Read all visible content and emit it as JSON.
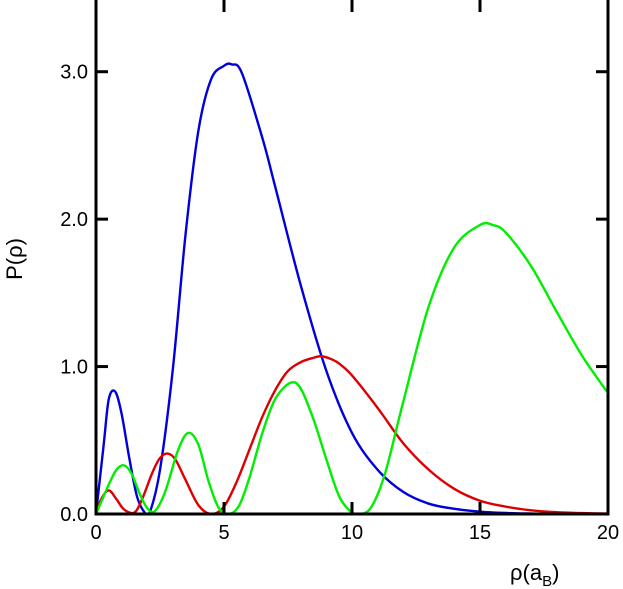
{
  "chart_data": {
    "type": "line",
    "title": "",
    "xlabel": "ρ(a",
    "xlabel_sub": "B",
    "xlabel_close": ")",
    "ylabel": "P(ρ)",
    "xlim": [
      0,
      20
    ],
    "ylim": [
      0,
      3.5
    ],
    "grid": false,
    "legend": "none",
    "x_ticks": [
      0,
      5,
      10,
      15,
      20
    ],
    "x_tick_labels": [
      "0",
      "5",
      "10",
      "15",
      "20"
    ],
    "y_ticks": [
      0,
      1,
      2,
      3
    ],
    "y_tick_labels": [
      "0.0",
      "1.0",
      "2.0",
      "3.0"
    ],
    "series": [
      {
        "color": "#0000dd",
        "x": [
          0,
          0.3,
          0.5,
          0.75,
          1.0,
          1.3,
          1.6,
          1.9,
          2.1,
          2.5,
          3.0,
          3.5,
          4.0,
          4.5,
          5.0,
          5.3,
          5.7,
          6.5,
          7.0,
          8.0,
          9.0,
          10.0,
          11.0,
          12.0,
          13.0,
          14.0,
          15.0,
          16.0,
          17.0,
          18.0,
          20.0
        ],
        "y": [
          0,
          0.47,
          0.78,
          0.83,
          0.68,
          0.38,
          0.12,
          0.01,
          0.01,
          0.3,
          0.98,
          1.9,
          2.6,
          2.95,
          3.04,
          3.05,
          2.99,
          2.55,
          2.22,
          1.55,
          0.97,
          0.55,
          0.3,
          0.15,
          0.07,
          0.035,
          0.016,
          0.007,
          0.003,
          0.001,
          0.0
        ]
      },
      {
        "color": "#dd0000",
        "x": [
          0,
          0.2,
          0.5,
          0.8,
          1.1,
          1.5,
          1.8,
          2.2,
          2.5,
          2.8,
          3.1,
          3.5,
          4.0,
          4.5,
          5.0,
          5.5,
          6.0,
          6.5,
          7.0,
          7.5,
          8.0,
          8.5,
          8.8,
          9.2,
          9.5,
          10.0,
          11.0,
          12.0,
          13.0,
          14.0,
          15.0,
          16.0,
          17.0,
          18.0,
          19.0,
          20.0
        ],
        "y": [
          0,
          0.1,
          0.16,
          0.1,
          0.03,
          0.01,
          0.1,
          0.28,
          0.38,
          0.41,
          0.37,
          0.23,
          0.06,
          0.0,
          0.05,
          0.22,
          0.44,
          0.66,
          0.84,
          0.97,
          1.03,
          1.06,
          1.07,
          1.05,
          1.02,
          0.94,
          0.72,
          0.48,
          0.3,
          0.17,
          0.09,
          0.05,
          0.025,
          0.012,
          0.006,
          0.003
        ]
      },
      {
        "color": "#00ee00",
        "x": [
          0,
          0.5,
          0.8,
          1.1,
          1.4,
          1.7,
          2.0,
          2.3,
          2.7,
          3.2,
          3.6,
          4.0,
          4.4,
          4.8,
          5.2,
          5.6,
          6.0,
          6.5,
          7.0,
          7.6,
          8.0,
          8.5,
          9.0,
          9.5,
          10.0,
          10.4,
          10.8,
          11.3,
          12.0,
          13.0,
          14.0,
          15.0,
          15.5,
          16.0,
          17.0,
          18.0,
          19.0,
          20.0
        ],
        "y": [
          0,
          0.2,
          0.3,
          0.33,
          0.27,
          0.14,
          0.04,
          0.02,
          0.15,
          0.43,
          0.55,
          0.47,
          0.22,
          0.04,
          0.0,
          0.06,
          0.25,
          0.55,
          0.78,
          0.89,
          0.85,
          0.64,
          0.37,
          0.12,
          0.01,
          0.0,
          0.06,
          0.28,
          0.76,
          1.41,
          1.81,
          1.96,
          1.96,
          1.91,
          1.68,
          1.37,
          1.07,
          0.82
        ]
      }
    ]
  }
}
